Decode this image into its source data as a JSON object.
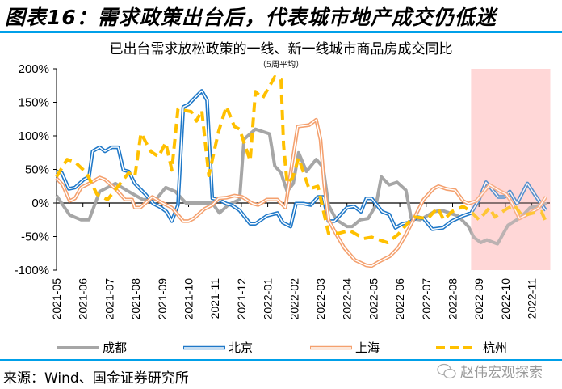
{
  "figure_title": "图表16：需求政策出台后，代表城市地产成交仍低迷",
  "source": "来源：Wind、国金证券研究所",
  "watermark": "赵伟宏观探索",
  "chart_data": {
    "type": "line",
    "title": "已出台需求放松政策的一线、新一线城市商品房成交同比",
    "subtitle": "（5周平均）",
    "xlabel": "",
    "ylabel": "",
    "ylim": [
      -100,
      200
    ],
    "yticks": [
      "200%",
      "150%",
      "100%",
      "50%",
      "0%",
      "-50%",
      "-100%"
    ],
    "ytick_values": [
      200,
      150,
      100,
      50,
      0,
      -50,
      -100
    ],
    "xticks": [
      "2021-05",
      "2021-06",
      "2021-07",
      "2021-08",
      "2021-09",
      "2021-10",
      "2021-11",
      "2021-12",
      "2022-01",
      "2022-02",
      "2022-03",
      "2022-04",
      "2022-05",
      "2022-06",
      "2022-07",
      "2022-08",
      "2022-09",
      "2022-10",
      "2022-11"
    ],
    "xlim": [
      "2021-05-01",
      "2022-11-27"
    ],
    "highlight_range": [
      "2022-08-22",
      "2022-11-22"
    ],
    "highlight_color": "#ffd7d7",
    "grid": false,
    "legend_position": "bottom",
    "series": [
      {
        "name": "成都",
        "color": "#a6a6a6",
        "style": "solid",
        "points": [
          [
            "2021-05-01",
            11
          ],
          [
            "2021-05-16",
            -18
          ],
          [
            "2021-05-29",
            -25
          ],
          [
            "2021-06-08",
            -25
          ],
          [
            "2021-06-20",
            17
          ],
          [
            "2021-07-08",
            29
          ],
          [
            "2021-07-23",
            17
          ],
          [
            "2021-08-09",
            5
          ],
          [
            "2021-08-24",
            5
          ],
          [
            "2021-09-05",
            23
          ],
          [
            "2021-09-16",
            17
          ],
          [
            "2021-09-28",
            0
          ],
          [
            "2021-10-28",
            0
          ],
          [
            "2021-11-06",
            -15
          ],
          [
            "2021-11-17",
            -2
          ],
          [
            "2021-11-29",
            5
          ],
          [
            "2021-12-04",
            95
          ],
          [
            "2021-12-17",
            110
          ],
          [
            "2022-01-03",
            103
          ],
          [
            "2022-01-09",
            55
          ],
          [
            "2022-01-16",
            45
          ],
          [
            "2022-01-23",
            17
          ],
          [
            "2022-01-30",
            29
          ],
          [
            "2022-02-06",
            75
          ],
          [
            "2022-02-15",
            47
          ],
          [
            "2022-02-26",
            65
          ],
          [
            "2022-03-04",
            53
          ],
          [
            "2022-03-10",
            -3
          ],
          [
            "2022-03-19",
            -25
          ],
          [
            "2022-04-01",
            -35
          ],
          [
            "2022-04-07",
            -35
          ],
          [
            "2022-04-16",
            -25
          ],
          [
            "2022-04-25",
            -23
          ],
          [
            "2022-05-04",
            -3
          ],
          [
            "2022-05-10",
            39
          ],
          [
            "2022-05-19",
            27
          ],
          [
            "2022-05-28",
            31
          ],
          [
            "2022-06-08",
            19
          ],
          [
            "2022-06-14",
            -23
          ],
          [
            "2022-06-24",
            -25
          ],
          [
            "2022-07-10",
            -13
          ],
          [
            "2022-07-19",
            -11
          ],
          [
            "2022-08-07",
            -19
          ],
          [
            "2022-08-19",
            -35
          ],
          [
            "2022-08-25",
            -51
          ],
          [
            "2022-09-03",
            -59
          ],
          [
            "2022-09-10",
            -55
          ],
          [
            "2022-09-22",
            -61
          ],
          [
            "2022-10-04",
            -33
          ],
          [
            "2022-10-19",
            -21
          ],
          [
            "2022-10-29",
            -7
          ],
          [
            "2022-11-18",
            -1
          ]
        ]
      },
      {
        "name": "北京",
        "color": "#1f78c8",
        "style": "double",
        "points": [
          [
            "2021-05-01",
            47
          ],
          [
            "2021-05-07",
            45
          ],
          [
            "2021-05-15",
            21
          ],
          [
            "2021-05-22",
            23
          ],
          [
            "2021-06-02",
            35
          ],
          [
            "2021-06-08",
            39
          ],
          [
            "2021-06-12",
            77
          ],
          [
            "2021-06-20",
            83
          ],
          [
            "2021-06-26",
            77
          ],
          [
            "2021-07-04",
            83
          ],
          [
            "2021-07-11",
            83
          ],
          [
            "2021-07-17",
            49
          ],
          [
            "2021-07-23",
            47
          ],
          [
            "2021-07-30",
            29
          ],
          [
            "2021-08-12",
            13
          ],
          [
            "2021-08-21",
            -1
          ],
          [
            "2021-08-30",
            -7
          ],
          [
            "2021-09-06",
            -13
          ],
          [
            "2021-09-12",
            -27
          ],
          [
            "2021-09-19",
            -3
          ],
          [
            "2021-09-25",
            143
          ],
          [
            "2021-10-01",
            147
          ],
          [
            "2021-10-07",
            155
          ],
          [
            "2021-10-16",
            167
          ],
          [
            "2021-10-22",
            153
          ],
          [
            "2021-10-28",
            7
          ],
          [
            "2021-11-05",
            5
          ],
          [
            "2021-11-14",
            -1
          ],
          [
            "2021-11-20",
            -3
          ],
          [
            "2021-11-29",
            -11
          ],
          [
            "2021-12-11",
            -31
          ],
          [
            "2021-12-17",
            -31
          ],
          [
            "2021-12-30",
            -19
          ],
          [
            "2022-01-12",
            -15
          ],
          [
            "2022-01-18",
            -29
          ],
          [
            "2022-01-27",
            -35
          ],
          [
            "2022-02-03",
            -1
          ],
          [
            "2022-02-12",
            -1
          ],
          [
            "2022-02-20",
            -3
          ],
          [
            "2022-02-28",
            9
          ],
          [
            "2022-03-04",
            9
          ],
          [
            "2022-03-10",
            -27
          ],
          [
            "2022-03-17",
            -27
          ],
          [
            "2022-04-01",
            -7
          ],
          [
            "2022-04-09",
            -5
          ],
          [
            "2022-04-17",
            -13
          ],
          [
            "2022-04-23",
            7
          ],
          [
            "2022-04-29",
            7
          ],
          [
            "2022-05-11",
            -13
          ],
          [
            "2022-05-19",
            -17
          ],
          [
            "2022-05-26",
            -37
          ],
          [
            "2022-06-04",
            -31
          ],
          [
            "2022-06-12",
            -29
          ],
          [
            "2022-06-21",
            -21
          ],
          [
            "2022-06-28",
            -23
          ],
          [
            "2022-07-08",
            -39
          ],
          [
            "2022-07-20",
            -37
          ],
          [
            "2022-07-30",
            -27
          ],
          [
            "2022-08-13",
            -19
          ],
          [
            "2022-08-22",
            -15
          ],
          [
            "2022-09-01",
            5
          ],
          [
            "2022-09-09",
            31
          ],
          [
            "2022-09-23",
            9
          ],
          [
            "2022-09-30",
            9
          ],
          [
            "2022-10-06",
            17
          ],
          [
            "2022-10-14",
            -1
          ],
          [
            "2022-10-26",
            29
          ],
          [
            "2022-11-05",
            11
          ],
          [
            "2022-11-17",
            -11
          ]
        ]
      },
      {
        "name": "上海",
        "color": "#f4a06e",
        "style": "double",
        "points": [
          [
            "2021-05-01",
            37
          ],
          [
            "2021-05-08",
            27
          ],
          [
            "2021-05-16",
            3
          ],
          [
            "2021-05-22",
            7
          ],
          [
            "2021-05-29",
            23
          ],
          [
            "2021-06-11",
            31
          ],
          [
            "2021-06-20",
            38
          ],
          [
            "2021-06-26",
            35
          ],
          [
            "2021-07-08",
            21
          ],
          [
            "2021-07-19",
            5
          ],
          [
            "2021-07-27",
            5
          ],
          [
            "2021-07-30",
            -7
          ],
          [
            "2021-08-06",
            -7
          ],
          [
            "2021-08-20",
            9
          ],
          [
            "2021-08-30",
            1
          ],
          [
            "2021-09-12",
            -7
          ],
          [
            "2021-09-25",
            -27
          ],
          [
            "2021-10-01",
            -27
          ],
          [
            "2021-10-07",
            -23
          ],
          [
            "2021-10-19",
            -9
          ],
          [
            "2021-10-28",
            -3
          ],
          [
            "2021-11-05",
            7
          ],
          [
            "2021-11-14",
            8
          ],
          [
            "2021-11-23",
            11
          ],
          [
            "2021-12-02",
            9
          ],
          [
            "2021-12-14",
            -1
          ],
          [
            "2021-12-20",
            -3
          ],
          [
            "2021-12-30",
            5
          ],
          [
            "2022-01-12",
            5
          ],
          [
            "2022-01-21",
            -7
          ],
          [
            "2022-02-05",
            114
          ],
          [
            "2022-02-18",
            116
          ],
          [
            "2022-02-26",
            124
          ],
          [
            "2022-03-01",
            94
          ],
          [
            "2022-03-05",
            29
          ],
          [
            "2022-03-10",
            -25
          ],
          [
            "2022-03-19",
            -47
          ],
          [
            "2022-03-28",
            -67
          ],
          [
            "2022-04-10",
            -85
          ],
          [
            "2022-04-23",
            -93
          ],
          [
            "2022-04-29",
            -94
          ],
          [
            "2022-05-08",
            -87
          ],
          [
            "2022-05-20",
            -79
          ],
          [
            "2022-05-29",
            -67
          ],
          [
            "2022-06-08",
            -47
          ],
          [
            "2022-06-18",
            -21
          ],
          [
            "2022-06-28",
            5
          ],
          [
            "2022-07-09",
            21
          ],
          [
            "2022-07-15",
            25
          ],
          [
            "2022-07-24",
            21
          ],
          [
            "2022-08-04",
            19
          ],
          [
            "2022-08-13",
            3
          ],
          [
            "2022-08-19",
            -1
          ],
          [
            "2022-08-28",
            3
          ],
          [
            "2022-09-13",
            27
          ],
          [
            "2022-09-23",
            19
          ],
          [
            "2022-10-02",
            13
          ],
          [
            "2022-10-08",
            1
          ],
          [
            "2022-10-17",
            -23
          ],
          [
            "2022-10-29",
            -15
          ],
          [
            "2022-11-09",
            -7
          ],
          [
            "2022-11-17",
            9
          ]
        ]
      },
      {
        "name": "杭州",
        "color": "#ffc000",
        "style": "dashed",
        "points": [
          [
            "2021-05-01",
            39
          ],
          [
            "2021-05-13",
            65
          ],
          [
            "2021-05-22",
            61
          ],
          [
            "2021-06-05",
            45
          ],
          [
            "2021-06-17",
            13
          ],
          [
            "2021-06-29",
            5
          ],
          [
            "2021-07-11",
            25
          ],
          [
            "2021-07-23",
            45
          ],
          [
            "2021-07-30",
            39
          ],
          [
            "2021-08-07",
            104
          ],
          [
            "2021-08-18",
            77
          ],
          [
            "2021-08-27",
            69
          ],
          [
            "2021-09-05",
            90
          ],
          [
            "2021-09-12",
            49
          ],
          [
            "2021-09-19",
            140
          ],
          [
            "2021-10-04",
            136
          ],
          [
            "2021-10-10",
            122
          ],
          [
            "2021-10-16",
            138
          ],
          [
            "2021-10-24",
            41
          ],
          [
            "2021-11-05",
            106
          ],
          [
            "2021-11-14",
            144
          ],
          [
            "2021-11-23",
            114
          ],
          [
            "2021-11-29",
            110
          ],
          [
            "2021-12-11",
            63
          ],
          [
            "2021-12-17",
            166
          ],
          [
            "2021-12-25",
            156
          ],
          [
            "2022-01-03",
            174
          ],
          [
            "2022-01-09",
            188
          ],
          [
            "2022-01-16",
            184
          ],
          [
            "2022-01-19",
            86
          ],
          [
            "2022-01-23",
            29
          ],
          [
            "2022-01-29",
            37
          ],
          [
            "2022-02-06",
            67
          ],
          [
            "2022-02-18",
            21
          ],
          [
            "2022-02-28",
            25
          ],
          [
            "2022-03-10",
            -45
          ],
          [
            "2022-03-22",
            -45
          ],
          [
            "2022-04-04",
            -41
          ],
          [
            "2022-04-20",
            -53
          ],
          [
            "2022-04-29",
            -51
          ],
          [
            "2022-05-17",
            -59
          ],
          [
            "2022-05-29",
            -47
          ],
          [
            "2022-06-12",
            -27
          ],
          [
            "2022-06-18",
            -21
          ],
          [
            "2022-07-03",
            -23
          ],
          [
            "2022-07-14",
            -7
          ],
          [
            "2022-07-21",
            -25
          ],
          [
            "2022-07-30",
            -13
          ],
          [
            "2022-08-13",
            -5
          ],
          [
            "2022-08-22",
            -13
          ],
          [
            "2022-09-01",
            -25
          ],
          [
            "2022-09-13",
            -7
          ],
          [
            "2022-09-19",
            -21
          ],
          [
            "2022-10-02",
            -9
          ],
          [
            "2022-10-11",
            -3
          ],
          [
            "2022-10-20",
            -19
          ],
          [
            "2022-11-02",
            -15
          ],
          [
            "2022-11-12",
            -13
          ],
          [
            "2022-11-16",
            -25
          ]
        ]
      }
    ]
  }
}
